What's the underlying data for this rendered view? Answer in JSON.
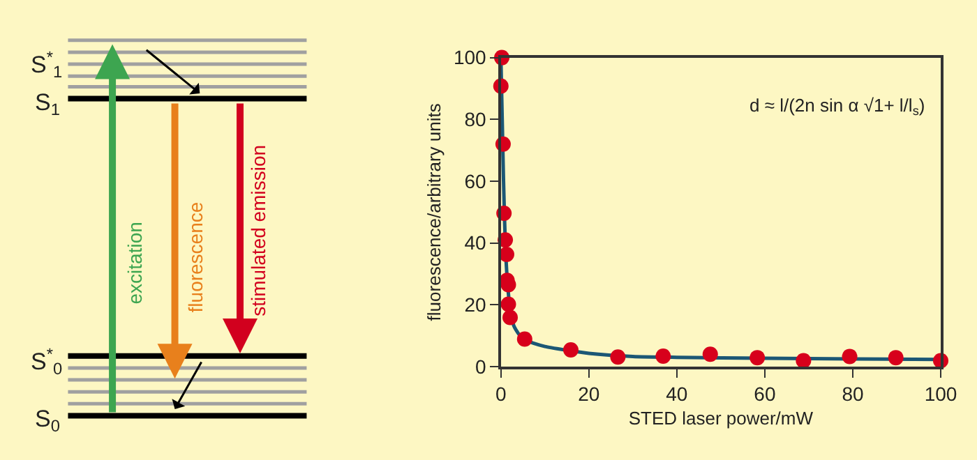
{
  "chart_data": [
    {
      "type": "other",
      "annotations": [
        "S$^{*}$$_{1}$",
        "S$_{1}$",
        "S$^{*}$$_{0}$",
        "S$_{0}$",
        "excitation",
        "fluorescence",
        "stimulated emission"
      ]
    },
    {
      "type": "scatter",
      "xlabel": "STED laser power/mW",
      "ylabel": "fluorescence/arbitrary units",
      "annotations": [
        "d ≈ l/(2n sin α √1+ l/l$_{s}$)"
      ],
      "xlim": [
        0,
        100
      ],
      "ylim": [
        0,
        100
      ],
      "xticks": [
        0,
        20,
        40,
        60,
        80,
        100
      ],
      "yticks": [
        0,
        20,
        40,
        60,
        80,
        100
      ],
      "grid": false,
      "series": [
        {
          "type": "line",
          "color": "#1b5775",
          "x": [
            0,
            0.3,
            0.6,
            1,
            1.5,
            2,
            3,
            5,
            10,
            15,
            20,
            30,
            40,
            60,
            80,
            100
          ],
          "values": [
            100,
            80,
            60,
            40,
            27,
            20,
            13,
            9,
            6.5,
            5.3,
            4.3,
            3.3,
            3.0,
            2.7,
            2.5,
            2.3
          ]
        },
        {
          "type": "scatter",
          "marker": "circle",
          "color": "#d7001b",
          "x": [
            0.2,
            0,
            0.5,
            0.7,
            1.0,
            1.3,
            1.4,
            1.7,
            1.7,
            2.1,
            5.4,
            15.9,
            26.6,
            36.9,
            47.6,
            58.3,
            68.8,
            79.3,
            89.8,
            100
          ],
          "values": [
            100,
            90.8,
            72,
            49.6,
            41,
            36.3,
            27.9,
            26.5,
            20.2,
            15.9,
            8.9,
            5.4,
            3.1,
            3.4,
            4.0,
            2.9,
            1.9,
            3.3,
            2.9,
            1.9
          ]
        }
      ]
    }
  ]
}
